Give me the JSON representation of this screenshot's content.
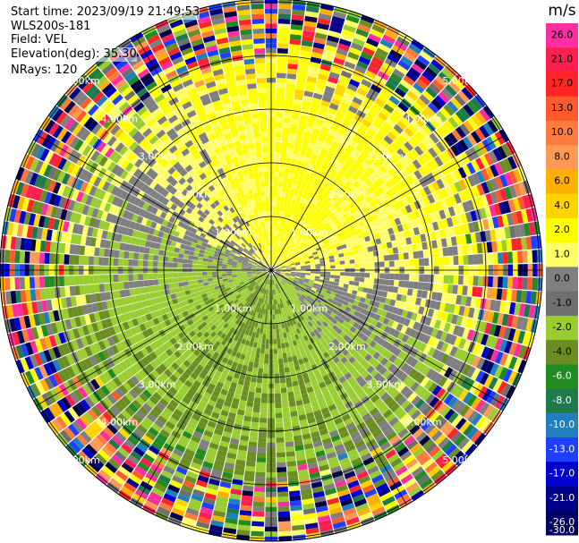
{
  "info": {
    "start_time": "Start time: 2023/09/19 21:49:53",
    "instrument": "WLS200s-181",
    "field": "Field: VEL",
    "elevation": "Elevation(deg): 35.30",
    "nrays": "NRays: 120"
  },
  "chart_data": {
    "type": "heatmap",
    "projection": "polar-ppi",
    "field": "VEL",
    "rays": 120,
    "range_rings": [
      {
        "label": "1.00km",
        "value": 1
      },
      {
        "label": "2.00km",
        "value": 2
      },
      {
        "label": "3.00km",
        "value": 3
      },
      {
        "label": "4.00km",
        "value": 4
      },
      {
        "label": "5.00km",
        "value": 5
      }
    ],
    "max_range_km": 5.7,
    "colorbar": {
      "unit": "m/s",
      "ticks": [
        "26.0",
        "21.0",
        "17.0",
        "13.0",
        "10.0",
        "8.0",
        "6.0",
        "4.0",
        "2.0",
        "1.0",
        "0.0",
        "-1.0",
        "-2.0",
        "-4.0",
        "-6.0",
        "-8.0",
        "-10.0",
        "-13.0",
        "-17.0",
        "-21.0",
        "-26.0",
        "-30.0"
      ],
      "colors": [
        "#ff2ea0",
        "#ff1e4e",
        "#ff2525",
        "#ff5a2c",
        "#ff7b3c",
        "#ff9a55",
        "#ffb000",
        "#ffd400",
        "#ffff00",
        "#ffff66",
        "#7f7f7f",
        "#6f6f6f",
        "#9acd32",
        "#6b8e23",
        "#228b22",
        "#1e7a4a",
        "#1f7fbf",
        "#1f3fff",
        "#0000cd",
        "#00008b",
        "#000066",
        "#000045"
      ]
    }
  }
}
